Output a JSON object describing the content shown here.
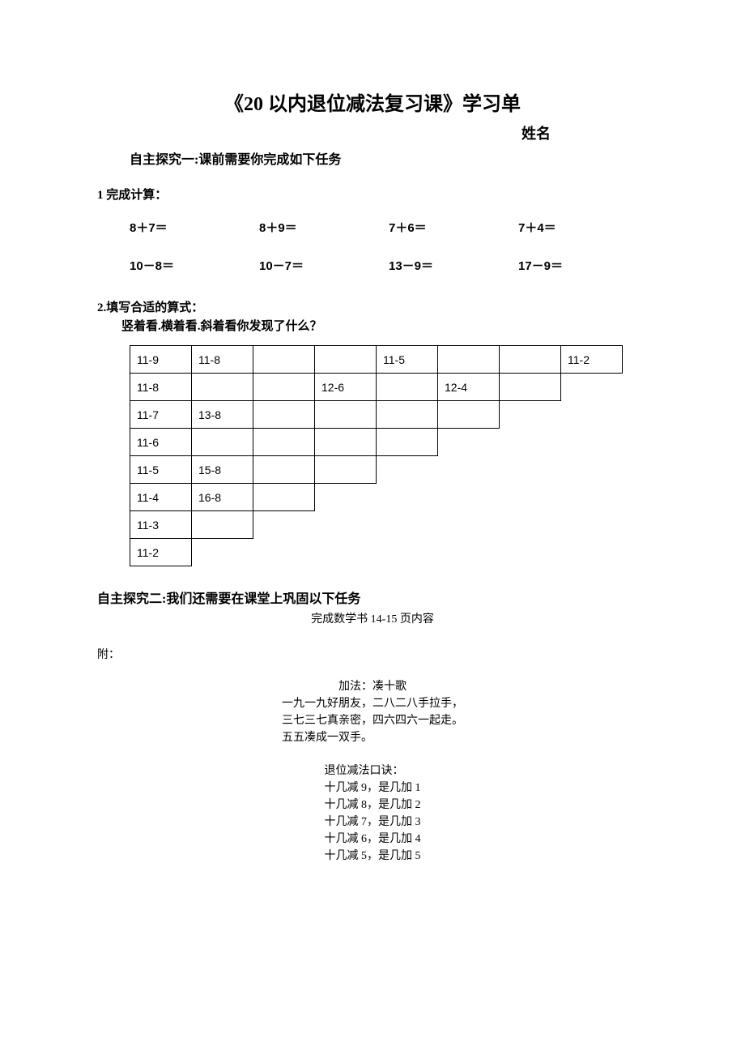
{
  "title": "《20 以内退位减法复习课》学习单",
  "name_label": "姓名",
  "section1_heading": "自主探究一:课前需要你完成如下任务",
  "q1_heading": "1 完成计算：",
  "calc": {
    "row1": [
      "8＋7＝",
      "8＋9＝",
      "7＋6＝",
      "7＋4＝"
    ],
    "row2": [
      "10－8＝",
      "10－7＝",
      "13－9＝",
      "17－9＝"
    ]
  },
  "q2_heading": "2.填写合适的算式：",
  "q2_sub": "竖着看.横着看.斜着看你发现了什么？",
  "table": {
    "rows": [
      [
        "11-9",
        "11-8",
        "",
        "",
        "11-5",
        "",
        "",
        "11-2"
      ],
      [
        "11-8",
        "",
        "",
        "12-6",
        "",
        "12-4",
        "",
        null
      ],
      [
        "11-7",
        "13-8",
        "",
        "",
        "",
        "",
        null,
        null
      ],
      [
        "11-6",
        "",
        "",
        "",
        "",
        null,
        null,
        null
      ],
      [
        "11-5",
        "15-8",
        "",
        "",
        null,
        null,
        null,
        null
      ],
      [
        "11-4",
        "16-8",
        "",
        null,
        null,
        null,
        null,
        null
      ],
      [
        "11-3",
        "",
        null,
        null,
        null,
        null,
        null,
        null
      ],
      [
        "11-2",
        null,
        null,
        null,
        null,
        null,
        null,
        null
      ]
    ]
  },
  "section2_heading": "自主探究二:我们还需要在课堂上巩固以下任务",
  "section2_sub": "完成数学书 14-15 页内容",
  "appendix_label": "附：",
  "poem": {
    "title": "加法：凑十歌",
    "lines": [
      "一九一九好朋友，二八二八手拉手，",
      "三七三七真亲密，四六四六一起走。",
      "五五凑成一双手。"
    ]
  },
  "mnemonic": {
    "title": "退位减法口诀：",
    "lines": [
      "十几减 9，是几加 1",
      "十几减 8，是几加 2",
      "十几减 7，是几加 3",
      "十几减 6，是几加 4",
      "十几减 5，是几加 5"
    ]
  },
  "colors": {
    "text": "#000000",
    "background": "#ffffff",
    "border": "#000000"
  },
  "fonts": {
    "title_size": 24,
    "heading_size": 16,
    "body_size": 15,
    "small_size": 14
  }
}
